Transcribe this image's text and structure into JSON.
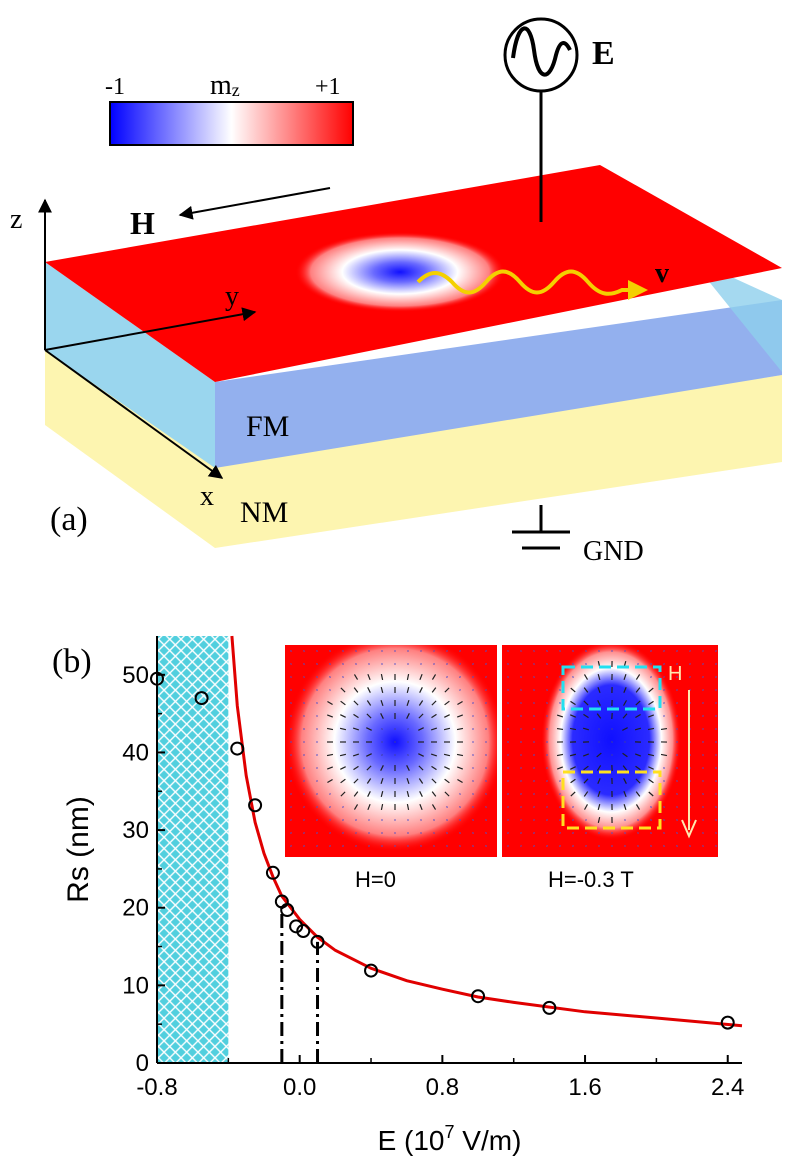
{
  "panel_a": {
    "label": "(a)",
    "colorbar": {
      "title": "m",
      "title_sub": "z",
      "min_label": "-1",
      "max_label": "+1",
      "colors": [
        "#0000ff",
        "#ffffff",
        "#ff0000"
      ]
    },
    "e_source_label": "E",
    "h_label": "H",
    "v_label": "v",
    "axis_x": "x",
    "axis_y": "y",
    "axis_z": "z",
    "layer_fm": "FM",
    "layer_nm": "NM",
    "ground_label": "GND"
  },
  "panel_b": {
    "label": "(b)",
    "inset_left_caption": "H=0",
    "inset_right_caption": "H=-0.3 T",
    "inset_h_arrow_label": "H"
  },
  "chart_data": {
    "type": "scatter",
    "xlabel_prefix": "E (10",
    "xlabel_sup": "7",
    "xlabel_suffix": " V/m)",
    "ylabel": "Rs (nm)",
    "xlim": [
      -0.8,
      2.48
    ],
    "ylim": [
      0,
      55
    ],
    "xticks": [
      -0.8,
      0.0,
      0.8,
      1.6,
      2.4
    ],
    "xtick_labels": [
      "-0.8",
      "0.0",
      "0.8",
      "1.6",
      "2.4"
    ],
    "yticks": [
      0,
      10,
      20,
      30,
      40,
      50
    ],
    "ytick_labels": [
      "0",
      "10",
      "20",
      "30",
      "40",
      "50"
    ],
    "series": [
      {
        "name": "simulation",
        "kind": "points",
        "x": [
          -0.8,
          -0.55,
          -0.35,
          -0.25,
          -0.15,
          -0.1,
          -0.07,
          -0.02,
          0.02,
          0.1,
          0.4,
          1.0,
          1.4,
          2.4
        ],
        "y": [
          49.5,
          47,
          40.5,
          33.2,
          24.5,
          20.8,
          19.7,
          17.6,
          17,
          15.6,
          11.9,
          8.6,
          7.1,
          5.2
        ]
      },
      {
        "name": "fit",
        "kind": "line",
        "color": "#e00000",
        "x": [
          -0.38,
          -0.35,
          -0.3,
          -0.25,
          -0.2,
          -0.15,
          -0.1,
          0.0,
          0.1,
          0.2,
          0.4,
          0.6,
          0.8,
          1.0,
          1.2,
          1.6,
          2.0,
          2.48
        ],
        "y": [
          55,
          46,
          37,
          31,
          27,
          24,
          21.5,
          18.5,
          16.2,
          14.5,
          12.2,
          10.6,
          9.5,
          8.5,
          7.8,
          6.6,
          5.8,
          4.8
        ]
      }
    ],
    "hatched_region": {
      "x_start": -0.8,
      "x_end": -0.4,
      "color": "#33c7d8"
    },
    "dash_dot_markers": [
      {
        "x": -0.1,
        "y": 20.8
      },
      {
        "x": 0.1,
        "y": 15.6
      }
    ]
  }
}
